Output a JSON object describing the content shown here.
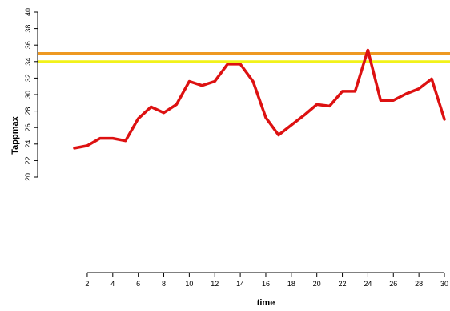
{
  "chart_data": {
    "type": "line",
    "title": "",
    "xlabel": "time",
    "ylabel": "Tappmax",
    "xlim": [
      1,
      30
    ],
    "ylim": [
      20,
      40
    ],
    "x_ticks": [
      2,
      4,
      6,
      8,
      10,
      12,
      14,
      16,
      18,
      20,
      22,
      24,
      26,
      28,
      30
    ],
    "y_ticks": [
      20,
      22,
      24,
      26,
      28,
      30,
      32,
      34,
      36,
      38,
      40
    ],
    "grid": false,
    "series": [
      {
        "color": "#dd1111",
        "x": [
          1,
          2,
          3,
          4,
          5,
          6,
          7,
          8,
          9,
          10,
          11,
          12,
          13,
          14,
          15,
          16,
          17,
          18,
          19,
          20,
          21,
          22,
          23,
          24,
          25,
          26,
          27,
          28,
          29,
          30
        ],
        "values": [
          23.5,
          23.8,
          24.7,
          24.7,
          24.4,
          27.1,
          28.5,
          27.8,
          28.8,
          31.6,
          31.1,
          31.6,
          33.7,
          33.7,
          31.6,
          27.2,
          25.1,
          26.3,
          27.5,
          28.8,
          28.6,
          30.4,
          30.4,
          35.4,
          29.3,
          29.3,
          30.1,
          30.7,
          31.9,
          27.0
        ]
      }
    ],
    "reference_lines": [
      {
        "y": 35.0,
        "color": "#ee9922"
      },
      {
        "y": 34.0,
        "color": "#f2f21a"
      }
    ]
  }
}
